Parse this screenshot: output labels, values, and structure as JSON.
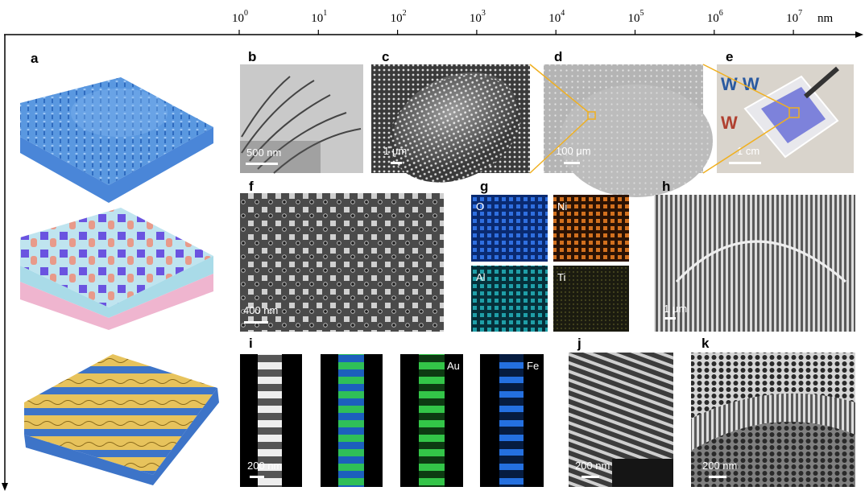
{
  "axis": {
    "ticks": [
      {
        "base": "10",
        "exponent": "0"
      },
      {
        "base": "10",
        "exponent": "1"
      },
      {
        "base": "10",
        "exponent": "2"
      },
      {
        "base": "10",
        "exponent": "3"
      },
      {
        "base": "10",
        "exponent": "4"
      },
      {
        "base": "10",
        "exponent": "5"
      },
      {
        "base": "10",
        "exponent": "6"
      },
      {
        "base": "10",
        "exponent": "7"
      }
    ],
    "unit": "nm"
  },
  "panels": [
    {
      "label": "a"
    },
    {
      "label": "b",
      "scale_bar": "500 nm"
    },
    {
      "label": "c",
      "scale_bar": "1 μm"
    },
    {
      "label": "d",
      "scale_bar": "100 μm"
    },
    {
      "label": "e",
      "scale_bar": "1 cm"
    },
    {
      "label": "f",
      "scale_bar": "400 nm"
    },
    {
      "label": "g",
      "elements": [
        "O",
        "Ni",
        "Al",
        "Ti"
      ]
    },
    {
      "label": "h",
      "scale_bar": "1 μm"
    },
    {
      "label": "i",
      "scale_bar": "200 nm",
      "elements": [
        "Au",
        "Fe"
      ]
    },
    {
      "label": "j",
      "scale_bar": "200 nm"
    },
    {
      "label": "k",
      "scale_bar": "200 nm"
    }
  ]
}
